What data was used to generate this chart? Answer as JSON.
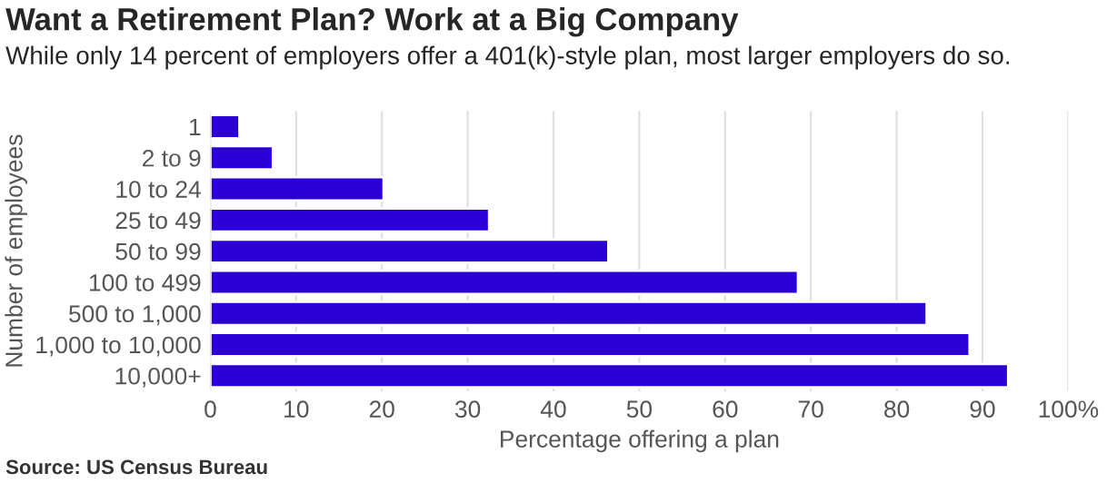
{
  "chart_data": {
    "type": "bar",
    "orientation": "horizontal",
    "title": "Want a Retirement Plan? Work at a Big Company",
    "subtitle": "While only 14 percent of employers offer a 401(k)-style plan, most larger employers do so.",
    "xlabel": "Percentage offering a plan",
    "ylabel": "Number of employees",
    "categories": [
      "1",
      "2 to 9",
      "10 to 24",
      "25 to 49",
      "50 to 99",
      "100 to 499",
      "500 to 1,000",
      "1,000 to 10,000",
      "10,000+"
    ],
    "values": [
      3.4,
      7.3,
      20.2,
      32.5,
      46.4,
      68.5,
      83.5,
      88.5,
      93.0
    ],
    "color": "#2a00d4",
    "xlim": [
      0,
      100
    ],
    "xticks": [
      0,
      10,
      20,
      30,
      40,
      50,
      60,
      70,
      80,
      90,
      {
        "value": 100,
        "label": "100%"
      }
    ],
    "grid": "x",
    "annotations": [
      "Source: US Census Bureau"
    ]
  }
}
